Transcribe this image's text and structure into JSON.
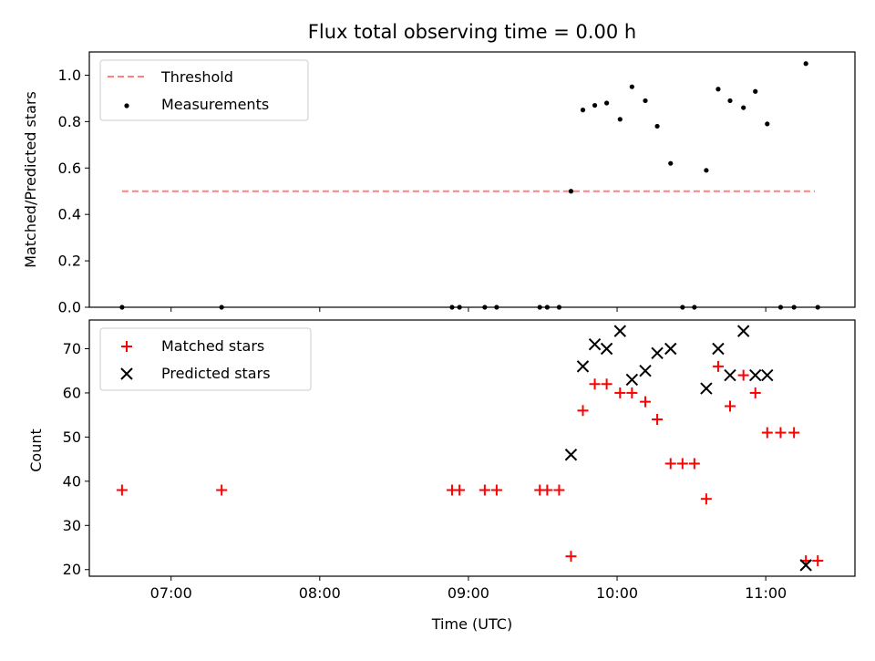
{
  "chart_data": [
    {
      "type": "scatter",
      "title": "Flux total observing time = 0.00 h",
      "xlabel": "",
      "ylabel": "Matched/Predicted stars",
      "x_unit": "hours UTC",
      "xlim": [
        6.45,
        11.6
      ],
      "ylim": [
        0.0,
        1.1
      ],
      "yticks": [
        "0.0",
        "0.2",
        "0.4",
        "0.6",
        "0.8",
        "1.0"
      ],
      "legend_position": "top-left",
      "legend": [
        "Threshold",
        "Measurements"
      ],
      "threshold": {
        "name": "Threshold",
        "y": 0.5,
        "x_range": [
          6.67,
          11.33
        ],
        "color": "#ff8080",
        "style": "dashed"
      },
      "series": [
        {
          "name": "Measurements",
          "marker": "dot",
          "color": "#000000",
          "points": [
            [
              6.67,
              0.0
            ],
            [
              7.34,
              0.0
            ],
            [
              8.89,
              0.0
            ],
            [
              8.94,
              0.0
            ],
            [
              9.11,
              0.0
            ],
            [
              9.19,
              0.0
            ],
            [
              9.48,
              0.0
            ],
            [
              9.53,
              0.0
            ],
            [
              9.61,
              0.0
            ],
            [
              9.69,
              0.5
            ],
            [
              9.77,
              0.85
            ],
            [
              9.85,
              0.87
            ],
            [
              9.93,
              0.88
            ],
            [
              10.02,
              0.81
            ],
            [
              10.1,
              0.95
            ],
            [
              10.19,
              0.89
            ],
            [
              10.27,
              0.78
            ],
            [
              10.36,
              0.62
            ],
            [
              10.44,
              0.0
            ],
            [
              10.52,
              0.0
            ],
            [
              10.6,
              0.59
            ],
            [
              10.68,
              0.94
            ],
            [
              10.76,
              0.89
            ],
            [
              10.85,
              0.86
            ],
            [
              10.93,
              0.93
            ],
            [
              11.01,
              0.79
            ],
            [
              11.1,
              0.0
            ],
            [
              11.19,
              0.0
            ],
            [
              11.27,
              1.05
            ],
            [
              11.35,
              0.0
            ]
          ]
        }
      ]
    },
    {
      "type": "scatter",
      "title": "",
      "xlabel": "Time (UTC)",
      "ylabel": "Count",
      "x_unit": "hours UTC",
      "xlim": [
        6.45,
        11.6
      ],
      "ylim": [
        18.5,
        76.5
      ],
      "xticks": [
        "07:00",
        "08:00",
        "09:00",
        "10:00",
        "11:00"
      ],
      "yticks": [
        "20",
        "30",
        "40",
        "50",
        "60",
        "70"
      ],
      "legend_position": "top-left",
      "legend": [
        "Matched stars",
        "Predicted stars"
      ],
      "series": [
        {
          "name": "Matched stars",
          "marker": "plus",
          "color": "#ff0000",
          "points": [
            [
              6.67,
              38
            ],
            [
              7.34,
              38
            ],
            [
              8.89,
              38
            ],
            [
              8.94,
              38
            ],
            [
              9.11,
              38
            ],
            [
              9.19,
              38
            ],
            [
              9.48,
              38
            ],
            [
              9.53,
              38
            ],
            [
              9.61,
              38
            ],
            [
              9.69,
              23
            ],
            [
              9.77,
              56
            ],
            [
              9.85,
              62
            ],
            [
              9.93,
              62
            ],
            [
              10.02,
              60
            ],
            [
              10.1,
              60
            ],
            [
              10.19,
              58
            ],
            [
              10.27,
              54
            ],
            [
              10.36,
              44
            ],
            [
              10.44,
              44
            ],
            [
              10.52,
              44
            ],
            [
              10.6,
              36
            ],
            [
              10.68,
              66
            ],
            [
              10.76,
              57
            ],
            [
              10.85,
              64
            ],
            [
              10.93,
              60
            ],
            [
              11.01,
              51
            ],
            [
              11.1,
              51
            ],
            [
              11.19,
              51
            ],
            [
              11.27,
              22
            ],
            [
              11.35,
              22
            ]
          ]
        },
        {
          "name": "Predicted stars",
          "marker": "x",
          "color": "#000000",
          "points": [
            [
              9.69,
              46
            ],
            [
              9.77,
              66
            ],
            [
              9.85,
              71
            ],
            [
              9.93,
              70
            ],
            [
              10.02,
              74
            ],
            [
              10.1,
              63
            ],
            [
              10.19,
              65
            ],
            [
              10.27,
              69
            ],
            [
              10.36,
              70
            ],
            [
              10.6,
              61
            ],
            [
              10.68,
              70
            ],
            [
              10.76,
              64
            ],
            [
              10.85,
              74
            ],
            [
              10.93,
              64
            ],
            [
              11.01,
              64
            ],
            [
              11.27,
              21
            ]
          ]
        }
      ]
    }
  ]
}
